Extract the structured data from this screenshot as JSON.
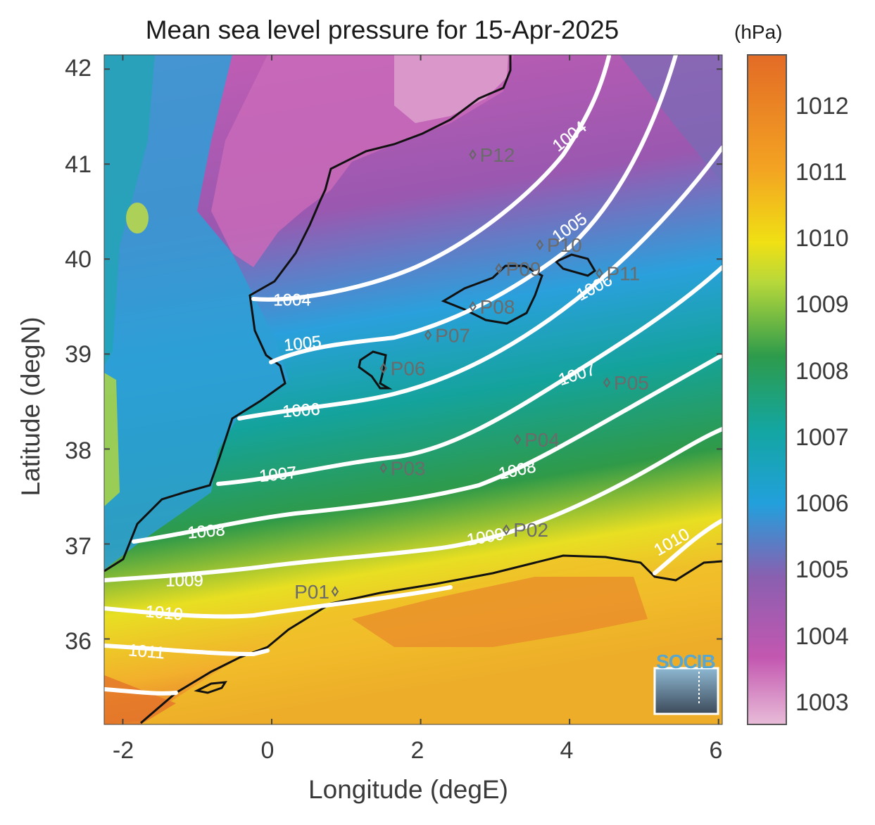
{
  "title": "Mean sea level pressure for 15-Apr-2025",
  "colorbar": {
    "units": "(hPa)",
    "ticks": [
      "1003",
      "1004",
      "1005",
      "1006",
      "1007",
      "1008",
      "1009",
      "1010",
      "1011",
      "1012"
    ],
    "colors": [
      "#e8bcd8",
      "#c357b0",
      "#8a5fb0",
      "#22a0dc",
      "#13a6a1",
      "#2d9b4b",
      "#f0e014",
      "#f3a322",
      "#e36b26"
    ]
  },
  "axes": {
    "xlabel": "Longitude (degE)",
    "ylabel": "Latitude (degN)",
    "xticks": [
      "-2",
      "0",
      "2",
      "4",
      "6"
    ],
    "yticks": [
      "42",
      "41",
      "40",
      "39",
      "38",
      "37",
      "36"
    ],
    "xlim": [
      -2.25,
      6.05
    ],
    "ylim": [
      35.1,
      42.15
    ]
  },
  "contour_labels": [
    "1004",
    "1004",
    "1005",
    "1005",
    "1006",
    "1006",
    "1007",
    "1007",
    "1008",
    "1008",
    "1009",
    "1009",
    "1010",
    "1010",
    "1011"
  ],
  "stations": [
    {
      "name": "P01",
      "lon": 0.85,
      "lat": 36.5
    },
    {
      "name": "P02",
      "lon": 3.15,
      "lat": 37.15
    },
    {
      "name": "P03",
      "lon": 1.5,
      "lat": 37.8
    },
    {
      "name": "P04",
      "lon": 3.3,
      "lat": 38.1
    },
    {
      "name": "P05",
      "lon": 4.5,
      "lat": 38.7
    },
    {
      "name": "P06",
      "lon": 1.5,
      "lat": 38.85
    },
    {
      "name": "P07",
      "lon": 2.1,
      "lat": 39.2
    },
    {
      "name": "P08",
      "lon": 2.7,
      "lat": 39.5
    },
    {
      "name": "P09",
      "lon": 3.05,
      "lat": 39.9
    },
    {
      "name": "P10",
      "lon": 3.6,
      "lat": 40.15
    },
    {
      "name": "P11",
      "lon": 4.4,
      "lat": 39.85
    },
    {
      "name": "P12",
      "lon": 2.7,
      "lat": 41.1
    }
  ],
  "logo": "SOCIB"
}
